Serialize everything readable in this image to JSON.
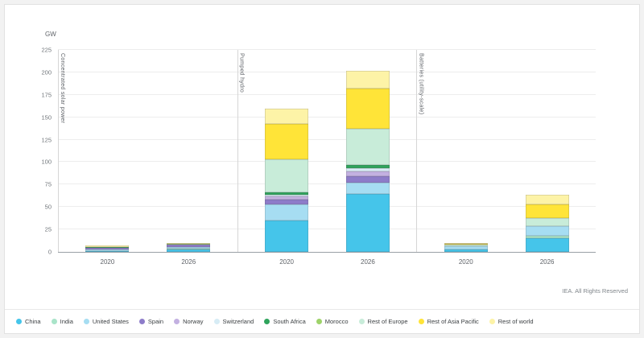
{
  "header": {
    "unit_label": "GW"
  },
  "footer": {
    "credit": "IEA. All Rights Reserved"
  },
  "chart_data": {
    "type": "stacked-bar",
    "title": "",
    "unit": "GW",
    "ylabel": "GW",
    "ylim": [
      0,
      225
    ],
    "yticks": [
      0,
      25,
      50,
      75,
      100,
      125,
      150,
      175,
      200,
      225
    ],
    "grid": true,
    "legend_position": "bottom",
    "panels": [
      {
        "label": "Concentrated solar power",
        "bars": [
          {
            "year": "2020",
            "total": 7
          },
          {
            "year": "2026",
            "total": 10
          }
        ]
      },
      {
        "label": "Pumped hydro",
        "bars": [
          {
            "year": "2020",
            "total": 160
          },
          {
            "year": "2026",
            "total": 202
          }
        ]
      },
      {
        "label": "Batteries (utility-scale)",
        "bars": [
          {
            "year": "2020",
            "total": 10
          },
          {
            "year": "2026",
            "total": 64
          }
        ]
      }
    ],
    "bar_order": [
      "CSP 2020",
      "CSP 2026",
      "Pumped hydro 2020",
      "Pumped hydro 2026",
      "Batteries 2020",
      "Batteries 2026"
    ],
    "series": [
      {
        "name": "China",
        "color": "#45c5ea",
        "values": [
          0.5,
          3.0,
          35,
          65,
          2.5,
          15
        ]
      },
      {
        "name": "India",
        "color": "#a9e4c9",
        "values": [
          0.2,
          0.7,
          0,
          0,
          0.5,
          3
        ]
      },
      {
        "name": "United States",
        "color": "#a6ddf2",
        "values": [
          1.7,
          1.8,
          18,
          12,
          3.5,
          11
        ]
      },
      {
        "name": "Spain",
        "color": "#8d7cc9",
        "values": [
          2.3,
          2.3,
          5,
          7,
          0,
          0
        ]
      },
      {
        "name": "Norway",
        "color": "#c3b1e1",
        "values": [
          0,
          0,
          4,
          6,
          0,
          0
        ]
      },
      {
        "name": "Switzerland",
        "color": "#d7ecf5",
        "values": [
          0,
          0,
          2,
          3,
          0,
          0
        ]
      },
      {
        "name": "South Africa",
        "color": "#2fa45c",
        "values": [
          0.5,
          0.6,
          2,
          4,
          0,
          0
        ]
      },
      {
        "name": "Morocco",
        "color": "#9ed36a",
        "values": [
          0.5,
          0.8,
          0,
          0,
          0,
          0
        ]
      },
      {
        "name": "Rest of Europe",
        "color": "#c8ecd9",
        "values": [
          0,
          0,
          37,
          40,
          1.5,
          9
        ]
      },
      {
        "name": "Rest of Asia Pacific",
        "color": "#ffe438",
        "values": [
          0,
          0,
          40,
          45,
          1.2,
          15
        ]
      },
      {
        "name": "Rest of world",
        "color": "#fdf3a7",
        "values": [
          1.3,
          0.8,
          17,
          20,
          0.8,
          11
        ]
      }
    ]
  }
}
